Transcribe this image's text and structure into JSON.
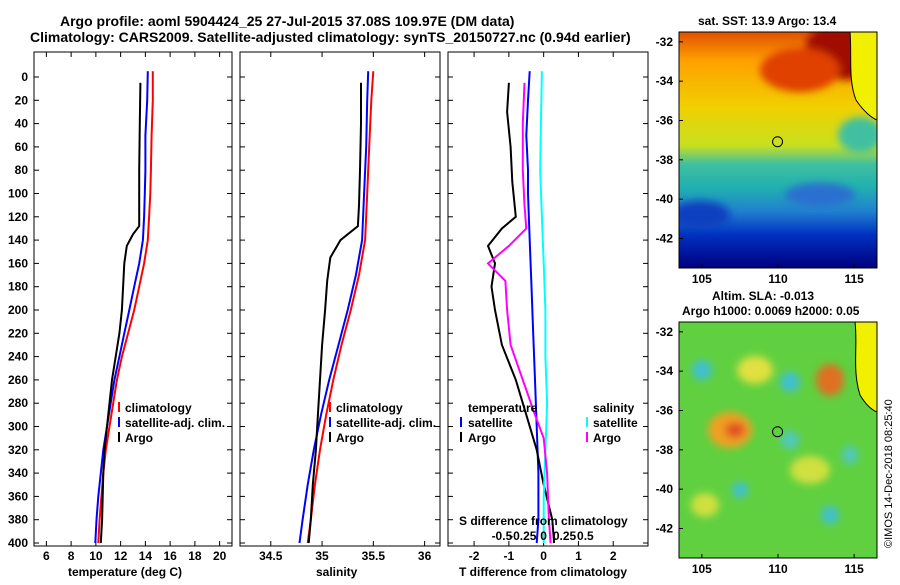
{
  "title": {
    "line1": "Argo profile: aoml 5904424_25 27-Jul-2015 37.08S 109.97E (DM data)",
    "line2": "Climatology: CARS2009. Satellite-adjusted climatology: synTS_20150727.nc (0.94d earlier)"
  },
  "credit": "©IMOS 14-Dec-2018 08:25:40",
  "colors": {
    "argo": "#000000",
    "clim": "#ff0000",
    "sat": "#0000ff",
    "cyan": "#00ffff",
    "magenta": "#ff00ff"
  },
  "chart_data": [
    {
      "id": "temperature",
      "type": "line",
      "xlabel": "temperature (deg C)",
      "ylabel": "",
      "xlim": [
        5,
        21
      ],
      "ylim": [
        0,
        400
      ],
      "xticks": [
        6,
        8,
        10,
        12,
        14,
        16,
        18,
        20
      ],
      "yticks": [
        0,
        20,
        40,
        60,
        80,
        100,
        120,
        140,
        160,
        180,
        200,
        220,
        240,
        260,
        280,
        300,
        320,
        340,
        360,
        380,
        400
      ],
      "legend": [
        "climatology",
        "satellite-adj. clim.",
        "Argo"
      ],
      "series": [
        {
          "name": "climatology",
          "color": "#ff0000",
          "points": [
            [
              14.6,
              -5
            ],
            [
              14.6,
              20
            ],
            [
              14.5,
              50
            ],
            [
              14.45,
              80
            ],
            [
              14.4,
              100
            ],
            [
              14.3,
              120
            ],
            [
              14.2,
              140
            ],
            [
              13.9,
              160
            ],
            [
              13.5,
              180
            ],
            [
              13.1,
              200
            ],
            [
              12.6,
              220
            ],
            [
              12.1,
              240
            ],
            [
              11.7,
              260
            ],
            [
              11.4,
              280
            ],
            [
              11.1,
              300
            ],
            [
              10.8,
              320
            ],
            [
              10.6,
              340
            ],
            [
              10.45,
              360
            ],
            [
              10.3,
              380
            ],
            [
              10.2,
              400
            ]
          ]
        },
        {
          "name": "satellite-adj. clim.",
          "color": "#0000ff",
          "points": [
            [
              14.2,
              -5
            ],
            [
              14.15,
              20
            ],
            [
              14.0,
              50
            ],
            [
              14.0,
              80
            ],
            [
              13.95,
              100
            ],
            [
              13.9,
              120
            ],
            [
              13.8,
              140
            ],
            [
              13.5,
              160
            ],
            [
              13.1,
              180
            ],
            [
              12.7,
              200
            ],
            [
              12.3,
              220
            ],
            [
              11.9,
              240
            ],
            [
              11.5,
              260
            ],
            [
              11.2,
              280
            ],
            [
              10.9,
              300
            ],
            [
              10.6,
              320
            ],
            [
              10.4,
              340
            ],
            [
              10.2,
              360
            ],
            [
              10.05,
              380
            ],
            [
              9.95,
              400
            ]
          ]
        },
        {
          "name": "Argo",
          "color": "#000000",
          "points": [
            [
              13.6,
              5
            ],
            [
              13.55,
              40
            ],
            [
              13.5,
              80
            ],
            [
              13.5,
              110
            ],
            [
              13.5,
              128
            ],
            [
              13.0,
              135
            ],
            [
              12.5,
              145
            ],
            [
              12.3,
              160
            ],
            [
              12.2,
              180
            ],
            [
              12.1,
              200
            ],
            [
              11.9,
              220
            ],
            [
              11.6,
              240
            ],
            [
              11.3,
              260
            ],
            [
              11.1,
              280
            ],
            [
              10.9,
              300
            ],
            [
              10.7,
              320
            ],
            [
              10.6,
              340
            ],
            [
              10.55,
              360
            ],
            [
              10.5,
              380
            ],
            [
              10.4,
              400
            ]
          ]
        }
      ]
    },
    {
      "id": "salinity",
      "type": "line",
      "xlabel": "salinity",
      "ylabel": "",
      "xlim": [
        34.2,
        36.15
      ],
      "ylim": [
        0,
        400
      ],
      "xticks": [
        34.5,
        35,
        35.5,
        36
      ],
      "xticklabels": [
        "34.5",
        "35",
        "35.5",
        "36"
      ],
      "legend": [
        "climatology",
        "satellite-adj. clim.",
        "Argo"
      ],
      "series": [
        {
          "name": "climatology",
          "color": "#ff0000",
          "points": [
            [
              35.5,
              -5
            ],
            [
              35.48,
              20
            ],
            [
              35.46,
              60
            ],
            [
              35.44,
              100
            ],
            [
              35.42,
              140
            ],
            [
              35.36,
              170
            ],
            [
              35.28,
              200
            ],
            [
              35.19,
              230
            ],
            [
              35.11,
              260
            ],
            [
              35.04,
              290
            ],
            [
              34.98,
              320
            ],
            [
              34.93,
              350
            ],
            [
              34.89,
              380
            ],
            [
              34.86,
              400
            ]
          ]
        },
        {
          "name": "satellite-adj. clim.",
          "color": "#0000ff",
          "points": [
            [
              35.45,
              -5
            ],
            [
              35.44,
              20
            ],
            [
              35.43,
              60
            ],
            [
              35.41,
              100
            ],
            [
              35.39,
              140
            ],
            [
              35.33,
              170
            ],
            [
              35.25,
              200
            ],
            [
              35.16,
              230
            ],
            [
              35.07,
              260
            ],
            [
              34.99,
              290
            ],
            [
              34.92,
              320
            ],
            [
              34.86,
              350
            ],
            [
              34.81,
              380
            ],
            [
              34.78,
              400
            ]
          ]
        },
        {
          "name": "Argo",
          "color": "#000000",
          "points": [
            [
              35.38,
              5
            ],
            [
              35.38,
              40
            ],
            [
              35.37,
              80
            ],
            [
              35.36,
              110
            ],
            [
              35.35,
              128
            ],
            [
              35.18,
              140
            ],
            [
              35.08,
              155
            ],
            [
              35.05,
              175
            ],
            [
              35.03,
              200
            ],
            [
              35.0,
              230
            ],
            [
              34.98,
              260
            ],
            [
              34.96,
              290
            ],
            [
              34.94,
              320
            ],
            [
              34.91,
              350
            ],
            [
              34.89,
              380
            ],
            [
              34.87,
              400
            ]
          ]
        }
      ]
    },
    {
      "id": "difference",
      "type": "line",
      "xlabel": "T difference from climatology",
      "xlabel_top": "S difference from climatology",
      "xlim": [
        -2.75,
        3
      ],
      "ylim": [
        0,
        400
      ],
      "xticks": [
        -2,
        -1,
        0,
        1,
        2
      ],
      "xticklabels": [
        "-2",
        "-1",
        "0",
        "1",
        "2"
      ],
      "s_xticklabels": [
        "-0.5",
        "-0.25",
        "0",
        "0.25",
        "0.5"
      ],
      "legend_left_title": "temperature",
      "legend_right_title": "salinity",
      "legend_left": [
        "satellite",
        "Argo"
      ],
      "legend_right": [
        "satellite",
        "Argo"
      ],
      "series": [
        {
          "name": "T satellite",
          "color": "#0000ff",
          "points": [
            [
              -0.4,
              -5
            ],
            [
              -0.45,
              20
            ],
            [
              -0.5,
              50
            ],
            [
              -0.45,
              80
            ],
            [
              -0.45,
              100
            ],
            [
              -0.4,
              140
            ],
            [
              -0.35,
              180
            ],
            [
              -0.3,
              220
            ],
            [
              -0.25,
              260
            ],
            [
              -0.2,
              300
            ],
            [
              -0.15,
              340
            ],
            [
              -0.15,
              380
            ],
            [
              -0.2,
              400
            ]
          ]
        },
        {
          "name": "T Argo",
          "color": "#000000",
          "points": [
            [
              -1.0,
              5
            ],
            [
              -1.05,
              30
            ],
            [
              -0.95,
              60
            ],
            [
              -0.9,
              90
            ],
            [
              -0.8,
              120
            ],
            [
              -1.2,
              130
            ],
            [
              -1.6,
              145
            ],
            [
              -1.4,
              160
            ],
            [
              -1.5,
              180
            ],
            [
              -1.4,
              200
            ],
            [
              -1.2,
              230
            ],
            [
              -0.8,
              260
            ],
            [
              -0.5,
              290
            ],
            [
              -0.2,
              320
            ],
            [
              0.0,
              350
            ],
            [
              0.25,
              380
            ],
            [
              0.3,
              400
            ]
          ]
        },
        {
          "name": "S satellite",
          "color": "#00ffff",
          "points": [
            [
              -0.05,
              -5
            ],
            [
              -0.08,
              40
            ],
            [
              -0.1,
              80
            ],
            [
              -0.05,
              120
            ],
            [
              0.0,
              160
            ],
            [
              0.05,
              200
            ],
            [
              0.05,
              240
            ],
            [
              0.1,
              280
            ],
            [
              0.05,
              320
            ],
            [
              0.0,
              360
            ],
            [
              0.0,
              400
            ]
          ]
        },
        {
          "name": "S Argo",
          "color": "#ff00ff",
          "points": [
            [
              -0.55,
              5
            ],
            [
              -0.6,
              40
            ],
            [
              -0.6,
              80
            ],
            [
              -0.55,
              110
            ],
            [
              -0.5,
              130
            ],
            [
              -1.0,
              145
            ],
            [
              -1.6,
              160
            ],
            [
              -1.1,
              175
            ],
            [
              -1.05,
              200
            ],
            [
              -0.95,
              230
            ],
            [
              -0.6,
              260
            ],
            [
              -0.25,
              290
            ],
            [
              0.0,
              310
            ],
            [
              0.1,
              340
            ],
            [
              0.15,
              380
            ],
            [
              0.2,
              400
            ]
          ]
        }
      ]
    },
    {
      "id": "sst_map",
      "type": "heatmap",
      "title": "sat. SST: 13.9 Argo: 13.4",
      "xlim": [
        103.5,
        116.5
      ],
      "ylim": [
        -43.5,
        -31.5
      ],
      "xticks": [
        105,
        110,
        115
      ],
      "yticks": [
        -32,
        -34,
        -36,
        -38,
        -40,
        -42
      ],
      "marker": [
        109.97,
        -37.08
      ]
    },
    {
      "id": "sla_map",
      "type": "heatmap",
      "title": "Altim. SLA: -0.013",
      "subtitle": "Argo h1000: 0.0069 h2000: 0.05",
      "xlim": [
        103.5,
        116.5
      ],
      "ylim": [
        -43.5,
        -31.5
      ],
      "xticks": [
        105,
        110,
        115
      ],
      "yticks": [
        -32,
        -34,
        -36,
        -38,
        -40,
        -42
      ],
      "marker": [
        109.97,
        -37.08
      ]
    }
  ]
}
